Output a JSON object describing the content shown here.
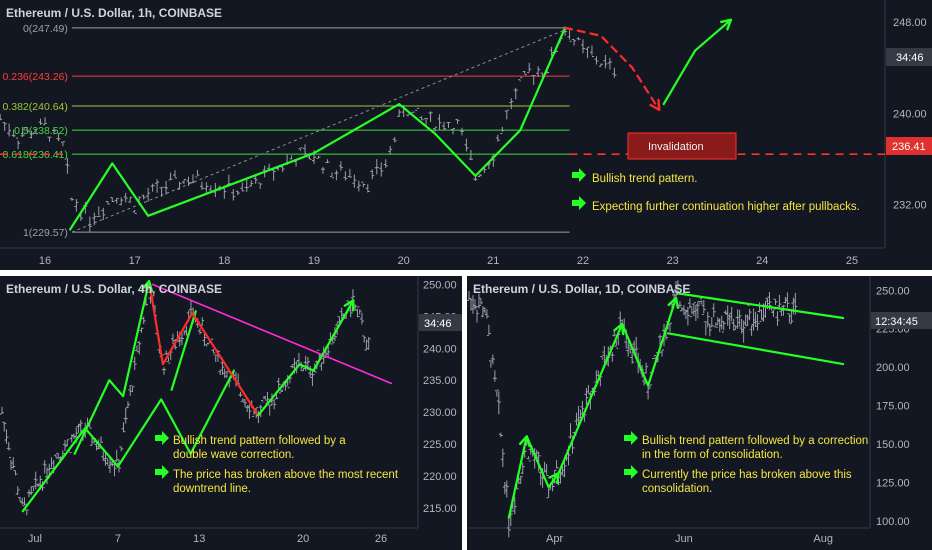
{
  "colors": {
    "bg": "#131722",
    "bull": "#26ff26",
    "bear": "#ff2a2a",
    "note": "#f5e642",
    "trend": "#ff2bd6",
    "bars": "#9aa0aa",
    "axis": "#b2b5be"
  },
  "chart_data": [
    {
      "type": "line",
      "title": "Ethereum / U.S. Dollar, 1h, COINBASE",
      "x_ticks": [
        "16",
        "17",
        "18",
        "19",
        "20",
        "21",
        "22",
        "23",
        "24",
        "25"
      ],
      "y_ticks": [
        "248.00",
        "240.00",
        "232.00"
      ],
      "ylim": [
        228,
        249.5
      ],
      "current_price_label": "34:46",
      "invalidation_price_label": "236.41",
      "invalidation_label": "Invalidation",
      "fib_levels": [
        {
          "label": "0(247.49)",
          "value": 247.49,
          "color": "#9aa0aa"
        },
        {
          "label": "0.236(243.26)",
          "value": 243.26,
          "color": "#ff3b3b"
        },
        {
          "label": "0.382(240.64)",
          "value": 240.64,
          "color": "#9acd32"
        },
        {
          "label": "0.5(238.52)",
          "value": 238.52,
          "color": "#3ddc3d"
        },
        {
          "label": "0.618(236.41)",
          "value": 236.41,
          "color": "#3ddc3d"
        },
        {
          "label": "1(229.57)",
          "value": 229.57,
          "color": "#9aa0aa"
        }
      ],
      "pattern_points": {
        "x": [
          16.28,
          16.75,
          17.15,
          19.0,
          19.95,
          20.35,
          20.8,
          21.3,
          21.8
        ],
        "y": [
          229.8,
          235.6,
          231.0,
          236.5,
          240.8,
          238.2,
          234.5,
          238.5,
          247.5
        ]
      },
      "price": {
        "x": [
          15.5,
          15.7,
          16.0,
          16.2,
          16.3,
          16.5,
          16.8,
          17.0,
          17.3,
          17.6,
          17.9,
          18.2,
          18.5,
          18.8,
          19.0,
          19.2,
          19.4,
          19.6,
          19.8,
          20.0,
          20.2,
          20.4,
          20.6,
          20.8,
          21.0,
          21.2,
          21.4,
          21.6,
          21.8,
          22.0,
          22.2,
          22.4
        ],
        "y": [
          239.5,
          238.0,
          238.8,
          237.0,
          232.5,
          230.8,
          233.0,
          232.0,
          233.5,
          234.2,
          233.8,
          233.0,
          234.8,
          236.2,
          236.3,
          235.0,
          234.5,
          234.0,
          235.5,
          240.5,
          239.5,
          239.2,
          239.0,
          234.5,
          236.5,
          241.0,
          243.5,
          244.0,
          247.5,
          245.5,
          244.5,
          243.5
        ]
      },
      "projection": {
        "x": [
          21.8,
          22.2,
          22.55,
          22.85
        ],
        "y": [
          247.5,
          246.8,
          244.0,
          240.3
        ]
      },
      "forecast": {
        "x": [
          22.9,
          23.25,
          23.65
        ],
        "y": [
          240.8,
          245.5,
          248.2
        ]
      },
      "notes": [
        "Bullish trend pattern.",
        "Expecting further continuation higher after pullbacks."
      ]
    },
    {
      "type": "line",
      "title": "Ethereum / U.S. Dollar, 4h, COINBASE",
      "x_ticks": [
        "Jul",
        "7",
        "13",
        "20",
        "26"
      ],
      "y_ticks": [
        "250.00",
        "245.00",
        "240.00",
        "235.00",
        "230.00",
        "225.00",
        "220.00",
        "215.00"
      ],
      "ylim": [
        212.5,
        251
      ],
      "current_price_label": "34:46",
      "bull_zigzag": {
        "x": [
          1.2,
          4.8,
          6.7,
          9.2,
          10.9,
          13.4
        ],
        "y": [
          214.5,
          227.5,
          221.5,
          232.0,
          223.5,
          236.5
        ]
      },
      "impulse": {
        "x": [
          9.8,
          11.2
        ],
        "y": [
          233.5,
          245.8
        ]
      },
      "up_leg": {
        "x": [
          4.2,
          6.2,
          7.0,
          8.5
        ],
        "y": [
          223.5,
          235.0,
          232.5,
          250.5
        ]
      },
      "bear_zigzag": {
        "x": [
          8.5,
          9.3,
          11.0,
          14.8
        ],
        "y": [
          250.5,
          237.5,
          245.5,
          229.5
        ]
      },
      "final_leg": {
        "x": [
          14.8,
          17.2,
          18.0,
          20.3
        ],
        "y": [
          229.5,
          237.5,
          236.5,
          247.5
        ]
      },
      "downtrend": {
        "x": [
          8.7,
          22.5
        ],
        "y": [
          250.0,
          234.5
        ]
      },
      "notes": [
        "Bullish trend pattern followed by a double wave correction.",
        "The price has broken above the most recent downtrend line."
      ]
    },
    {
      "type": "line",
      "title": "Ethereum / U.S. Dollar, 1D, COINBASE",
      "x_ticks": [
        "Apr",
        "Jun",
        "Aug"
      ],
      "y_ticks": [
        "250.00",
        "225.00",
        "200.00",
        "175.00",
        "150.00",
        "125.00",
        "100.00"
      ],
      "ylim": [
        98,
        258
      ],
      "current_price_label": "12:34:45",
      "zigzag": {
        "x": [
          1.0,
          1.45,
          2.0,
          2.25,
          3.85,
          4.5,
          5.2
        ],
        "y": [
          102,
          155,
          122,
          131,
          228,
          188,
          245
        ]
      },
      "channel_upper": {
        "x": [
          5.25,
          9.4
        ],
        "y": [
          248,
          232
        ]
      },
      "channel_lower": {
        "x": [
          5.0,
          9.4
        ],
        "y": [
          222,
          202
        ]
      },
      "notes": [
        "Bullish trend pattern followed by a correction in the form of consolidation.",
        "Currently the price has broken above this consolidation."
      ]
    }
  ]
}
